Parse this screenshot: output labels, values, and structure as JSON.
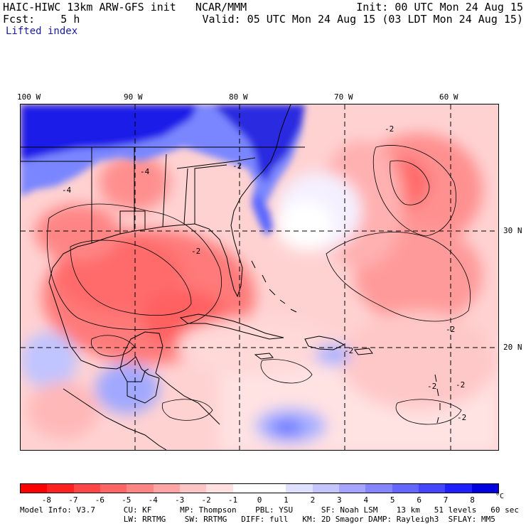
{
  "header": {
    "left_line1": "HAIC-HIWC 13km ARW-GFS init   NCAR/MMM",
    "left_line2": "Fcst:    5 h",
    "field_name": "Lifted index",
    "right_line1": "Init: 00 UTC Mon 24 Aug 15",
    "right_line2": "Valid: 05 UTC Mon 24 Aug 15 (03 LDT Mon 24 Aug 15)"
  },
  "map": {
    "lon_labels": [
      "100 W",
      "90 W",
      "80 W",
      "70 W",
      "60 W"
    ],
    "lat_labels": [
      "30 N",
      "20 N"
    ],
    "contour_labels": [
      "-2",
      "-2",
      "-2",
      "-4",
      "-4",
      "-2",
      "-2",
      "-2",
      "-2",
      "-2"
    ]
  },
  "colorbar": {
    "tick_labels": [
      "-8",
      "-7",
      "-6",
      "-5",
      "-4",
      "-3",
      "-2",
      "-1",
      "0",
      "1",
      "2",
      "3",
      "4",
      "5",
      "6",
      "7",
      "8"
    ],
    "unit": "°C",
    "colors": [
      "#ff0000",
      "#ff2020",
      "#ff4545",
      "#ff6565",
      "#ff8585",
      "#ffa5a5",
      "#ffc5c5",
      "#ffe0e0",
      "#ffffff",
      "#ffffff",
      "#e0e0ff",
      "#c5c5ff",
      "#a5a5ff",
      "#8585ff",
      "#6565ff",
      "#4545ff",
      "#2020ff",
      "#0000e0"
    ]
  },
  "footer": {
    "line1": "Model Info: V3.7      CU: KF      MP: Thompson    PBL: YSU      SF: Noah LSM    13 km   51 levels   60 sec",
    "line2": "                      LW: RRTMG    SW: RRTMG   DIFF: full   KM: 2D Smagor DAMP: Rayleigh3  SFLAY: MM5"
  }
}
